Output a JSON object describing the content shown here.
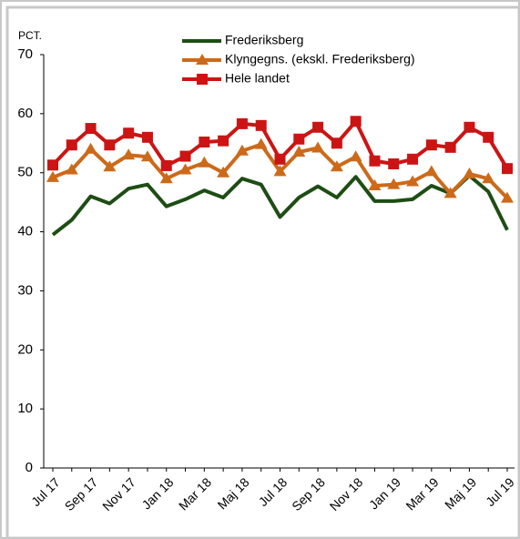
{
  "chart_data": {
    "type": "line",
    "y_label": "PCT.",
    "categories": [
      "Jul 17",
      null,
      "Sep 17",
      null,
      "Nov 17",
      null,
      "Jan 18",
      null,
      "Mar 18",
      null,
      "Maj 18",
      null,
      "Jul 18",
      null,
      "Sep 18",
      null,
      "Nov 18",
      null,
      "Jan 19",
      null,
      "Mar 19",
      null,
      "Maj 19",
      null,
      "Jul 19"
    ],
    "series": [
      {
        "name": "Frederiksberg",
        "color": "#1e4d14",
        "marker": "none",
        "values": [
          39.5,
          42,
          46,
          44.8,
          47.3,
          48,
          44.3,
          45.5,
          47,
          45.8,
          49,
          48,
          42.5,
          45.8,
          47.7,
          45.8,
          49.3,
          45.2,
          45.2,
          45.5,
          47.8,
          46.5,
          49.5,
          46.8,
          40.3
        ]
      },
      {
        "name": "Klyngegns. (ekskl. Frederiksberg)",
        "color": "#cc6a1a",
        "marker": "triangle",
        "values": [
          49.2,
          50.5,
          54,
          51,
          53,
          52.7,
          49,
          50.5,
          51.7,
          50,
          53.7,
          54.8,
          50.2,
          53.5,
          54.2,
          51,
          52.7,
          47.8,
          48,
          48.5,
          50.2,
          46.5,
          49.8,
          49,
          45.7
        ]
      },
      {
        "name": "Hele landet",
        "color": "#cc1414",
        "marker": "square",
        "values": [
          51.3,
          54.7,
          57.5,
          54.7,
          56.7,
          56,
          51.2,
          52.8,
          55.2,
          55.4,
          58.3,
          58,
          52.3,
          55.7,
          57.7,
          55,
          58.7,
          52,
          51.5,
          52.3,
          54.7,
          54.3,
          57.7,
          56,
          50.7
        ]
      }
    ],
    "ylim": [
      0,
      70
    ],
    "yticks": [
      0,
      10,
      20,
      30,
      40,
      50,
      60,
      70
    ],
    "grid": false
  }
}
